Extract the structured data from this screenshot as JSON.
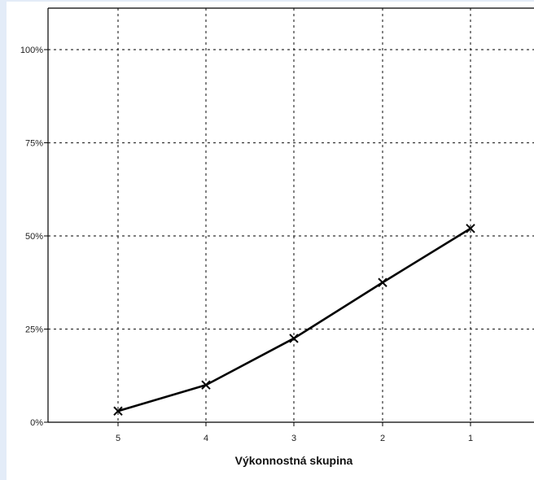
{
  "chart_data": {
    "type": "line",
    "categories": [
      "5",
      "4",
      "3",
      "2",
      "1"
    ],
    "series": [
      {
        "values": [
          3,
          10,
          22.5,
          37.5,
          52
        ],
        "marker": "x",
        "color": "#000000"
      }
    ],
    "xlabel": "Výkonnostná skupina",
    "ylabel": "",
    "ylim": [
      0,
      100
    ],
    "yticks": [
      {
        "value": 0,
        "label": "0%"
      },
      {
        "value": 25,
        "label": "25%"
      },
      {
        "value": 50,
        "label": "50%"
      },
      {
        "value": 75,
        "label": "75%"
      },
      {
        "value": 100,
        "label": "100%"
      }
    ],
    "grid": true,
    "legend": "none"
  }
}
